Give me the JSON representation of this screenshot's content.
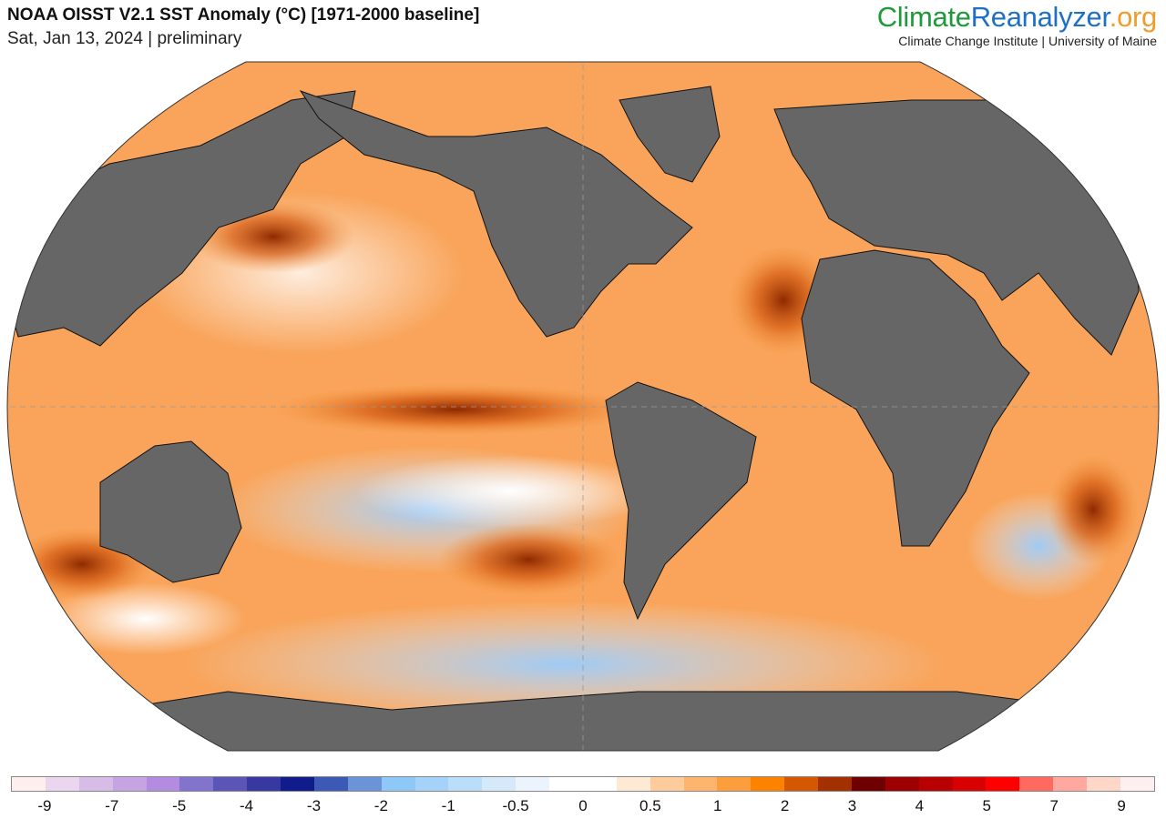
{
  "header": {
    "title": "NOAA OISST V2.1 SST Anomaly (°C) [1971-2000 baseline]",
    "subtitle": "Sat, Jan 13, 2024 | preliminary"
  },
  "logo": {
    "part1": "Climate",
    "part2": "Reanalyzer",
    "part3": ".org",
    "tagline": "Climate Change Institute | University of Maine",
    "colors": {
      "climate": "#1e9a3a",
      "reanalyzer": "#1f6fc6",
      "org": "#f39a2a"
    }
  },
  "map": {
    "projection": "Robinson-like world map, Pacific-centered left edge",
    "land_color": "#666666",
    "ocean_dominant_color": "#f9a45a"
  },
  "colorbar": {
    "colors": [
      "#ffeeee",
      "#ebd6f0",
      "#d8bce8",
      "#c6a4e2",
      "#b38be0",
      "#8273cc",
      "#5b55b8",
      "#3838a2",
      "#101c8c",
      "#3c5ab5",
      "#6a93d8",
      "#8ec8f8",
      "#a4d2f8",
      "#badefa",
      "#d6e9fb",
      "#ebf4fd",
      "#ffffff",
      "#ffffff",
      "#fde9d4",
      "#fdcb9c",
      "#fdb46c",
      "#fd9e3c",
      "#fd8200",
      "#d45800",
      "#a33000",
      "#6e0000",
      "#9c0000",
      "#b80000",
      "#d80000",
      "#ff0000",
      "#ff6a60",
      "#ffa8a0",
      "#fdd8c8",
      "#fdeef0"
    ],
    "labels": [
      "-9",
      "-7",
      "-5",
      "-4",
      "-3",
      "-2",
      "-1",
      "-0.5",
      "0",
      "0.5",
      "1",
      "2",
      "3",
      "4",
      "5",
      "7",
      "9"
    ]
  }
}
